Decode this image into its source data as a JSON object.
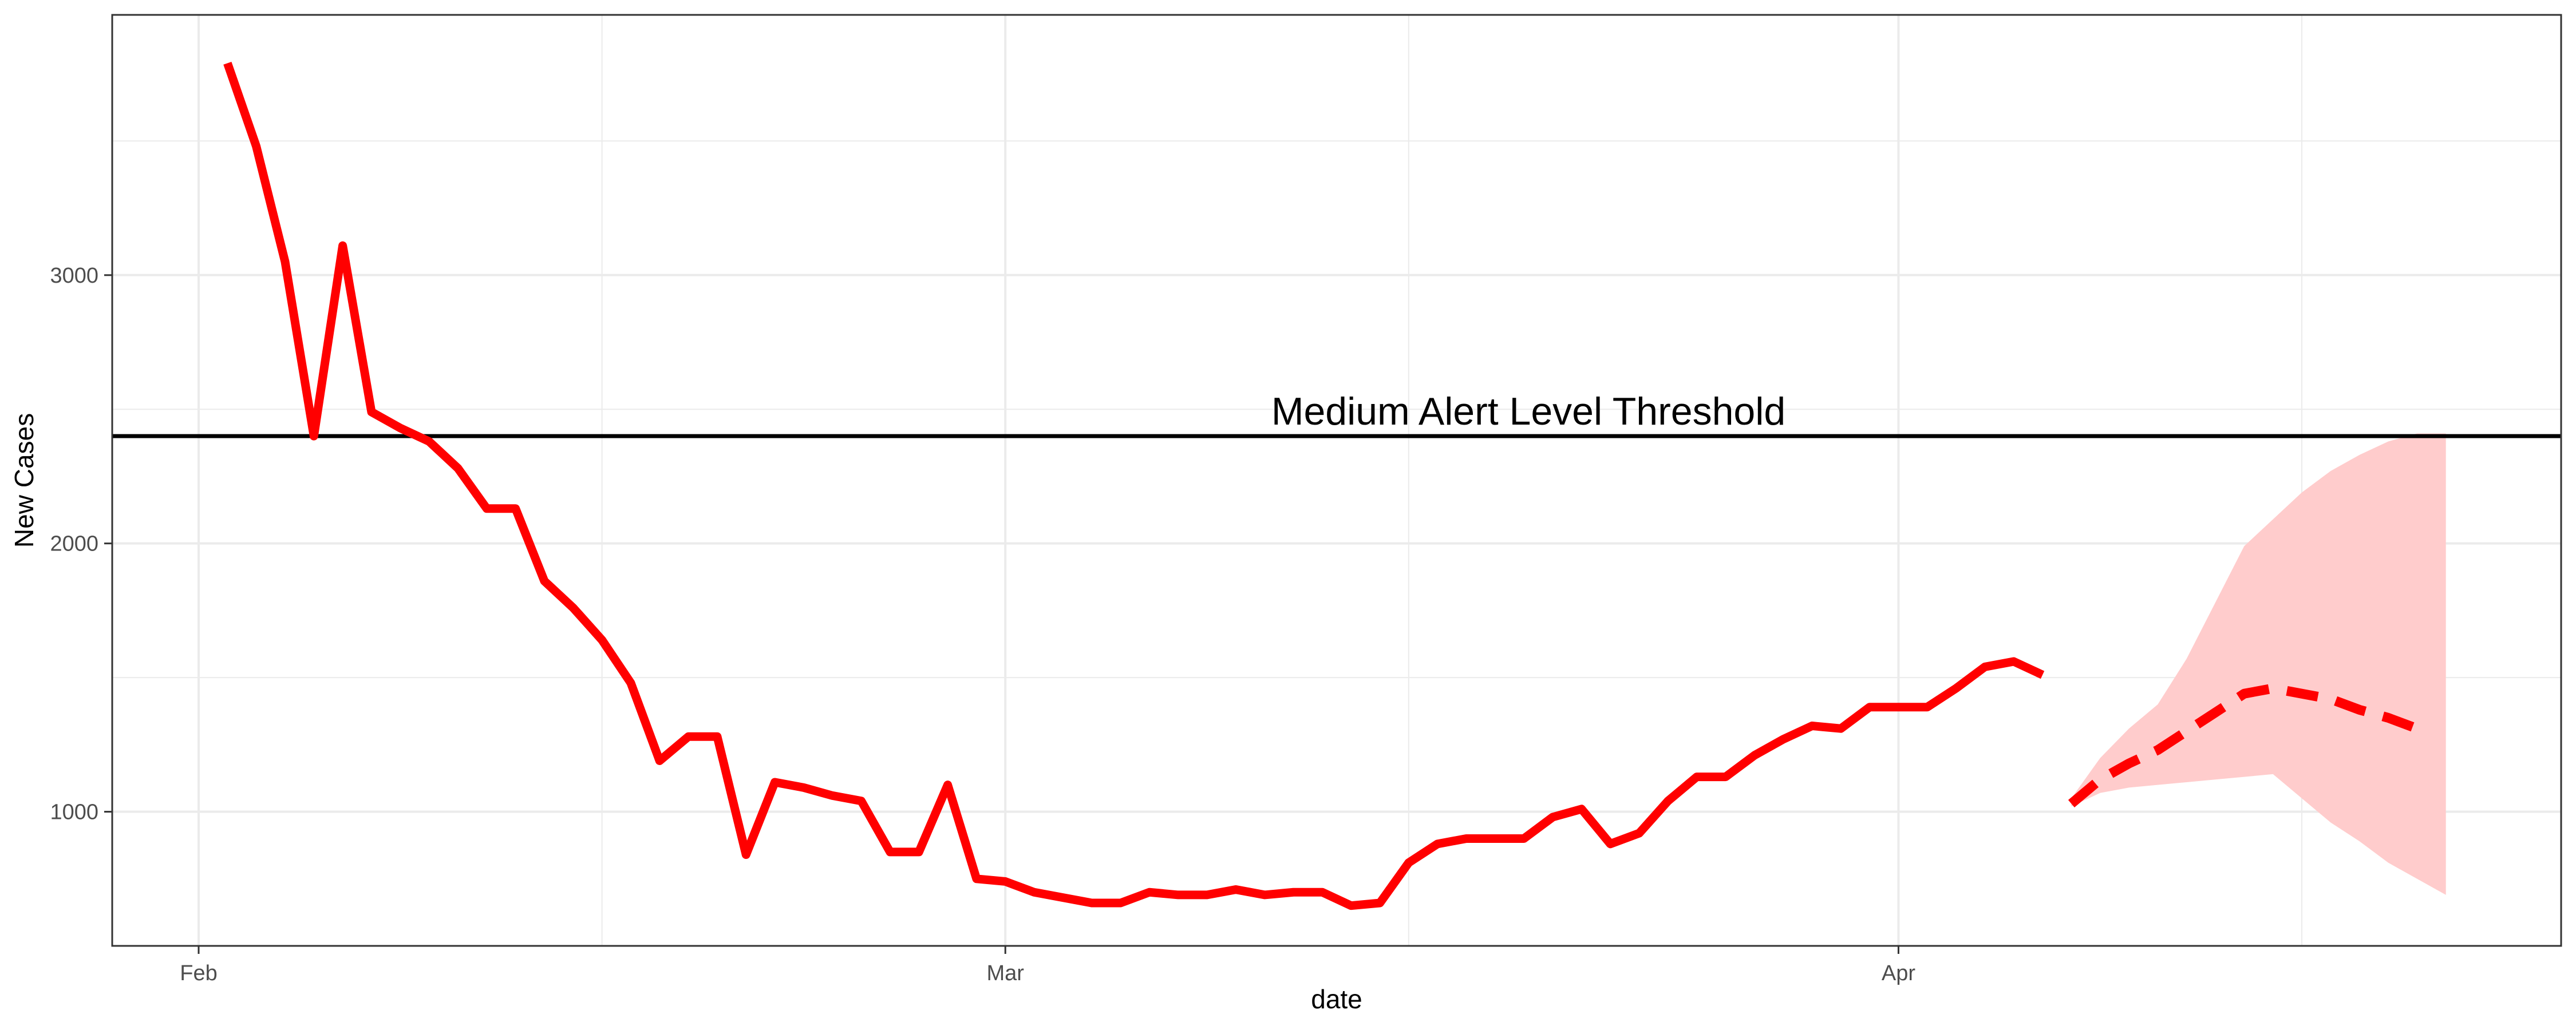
{
  "chart_data": {
    "type": "line",
    "xlabel": "date",
    "ylabel": "New Cases",
    "xlim": [
      "2021-01-29",
      "2021-04-24"
    ],
    "ylim": [
      500,
      3970
    ],
    "x_ticks": [
      {
        "date": "2021-02-01",
        "label": "Feb"
      },
      {
        "date": "2021-03-01",
        "label": "Mar"
      },
      {
        "date": "2021-04-01",
        "label": "Apr"
      }
    ],
    "x_minor_dates": [
      "2021-02-15",
      "2021-03-15",
      "2021-04-15"
    ],
    "y_ticks": [
      1000,
      2000,
      3000
    ],
    "y_minor": [
      1500,
      2500,
      3500
    ],
    "grid": true,
    "threshold": {
      "value": 2400,
      "label": "Medium Alert Level Threshold"
    },
    "colors": {
      "observed": "#ff0000",
      "forecast": "#ff0000",
      "band": "#ffcccc",
      "threshold": "#000000",
      "grid": "#ebebeb",
      "panel_border": "#333333"
    },
    "series": [
      {
        "style": "solid",
        "points": [
          [
            "2021-02-02",
            3790
          ],
          [
            "2021-02-03",
            3480
          ],
          [
            "2021-02-04",
            3050
          ],
          [
            "2021-02-05",
            2400
          ],
          [
            "2021-02-06",
            3110
          ],
          [
            "2021-02-07",
            2490
          ],
          [
            "2021-02-08",
            2430
          ],
          [
            "2021-02-09",
            2380
          ],
          [
            "2021-02-10",
            2280
          ],
          [
            "2021-02-11",
            2130
          ],
          [
            "2021-02-12",
            2130
          ],
          [
            "2021-02-13",
            1860
          ],
          [
            "2021-02-14",
            1760
          ],
          [
            "2021-02-15",
            1640
          ],
          [
            "2021-02-16",
            1480
          ],
          [
            "2021-02-17",
            1190
          ],
          [
            "2021-02-18",
            1280
          ],
          [
            "2021-02-19",
            1280
          ],
          [
            "2021-02-20",
            840
          ],
          [
            "2021-02-21",
            1110
          ],
          [
            "2021-02-22",
            1090
          ],
          [
            "2021-02-23",
            1060
          ],
          [
            "2021-02-24",
            1040
          ],
          [
            "2021-02-25",
            850
          ],
          [
            "2021-02-26",
            850
          ],
          [
            "2021-02-27",
            1100
          ],
          [
            "2021-02-28",
            750
          ],
          [
            "2021-03-01",
            740
          ],
          [
            "2021-03-02",
            700
          ],
          [
            "2021-03-03",
            680
          ],
          [
            "2021-03-04",
            660
          ],
          [
            "2021-03-05",
            660
          ],
          [
            "2021-03-06",
            700
          ],
          [
            "2021-03-07",
            690
          ],
          [
            "2021-03-08",
            690
          ],
          [
            "2021-03-09",
            710
          ],
          [
            "2021-03-10",
            690
          ],
          [
            "2021-03-11",
            700
          ],
          [
            "2021-03-12",
            700
          ],
          [
            "2021-03-13",
            650
          ],
          [
            "2021-03-14",
            660
          ],
          [
            "2021-03-15",
            810
          ],
          [
            "2021-03-16",
            880
          ],
          [
            "2021-03-17",
            900
          ],
          [
            "2021-03-18",
            900
          ],
          [
            "2021-03-19",
            900
          ],
          [
            "2021-03-20",
            980
          ],
          [
            "2021-03-21",
            1010
          ],
          [
            "2021-03-22",
            880
          ],
          [
            "2021-03-23",
            920
          ],
          [
            "2021-03-24",
            1040
          ],
          [
            "2021-03-25",
            1130
          ],
          [
            "2021-03-26",
            1130
          ],
          [
            "2021-03-27",
            1210
          ],
          [
            "2021-03-28",
            1270
          ],
          [
            "2021-03-29",
            1320
          ],
          [
            "2021-03-30",
            1310
          ],
          [
            "2021-03-31",
            1390
          ],
          [
            "2021-04-01",
            1390
          ],
          [
            "2021-04-02",
            1390
          ],
          [
            "2021-04-03",
            1460
          ],
          [
            "2021-04-04",
            1540
          ],
          [
            "2021-04-05",
            1560
          ],
          [
            "2021-04-06",
            1510
          ]
        ]
      },
      {
        "style": "dashed",
        "points": [
          [
            "2021-04-07",
            1030
          ],
          [
            "2021-04-08",
            1120
          ],
          [
            "2021-04-09",
            1180
          ],
          [
            "2021-04-10",
            1230
          ],
          [
            "2021-04-11",
            1300
          ],
          [
            "2021-04-12",
            1370
          ],
          [
            "2021-04-13",
            1440
          ],
          [
            "2021-04-14",
            1460
          ],
          [
            "2021-04-15",
            1440
          ],
          [
            "2021-04-16",
            1420
          ],
          [
            "2021-04-17",
            1380
          ],
          [
            "2021-04-18",
            1350
          ],
          [
            "2021-04-19",
            1310
          ]
        ]
      }
    ],
    "band": {
      "dates": [
        "2021-04-07",
        "2021-04-08",
        "2021-04-09",
        "2021-04-10",
        "2021-04-11",
        "2021-04-12",
        "2021-04-13",
        "2021-04-14",
        "2021-04-15",
        "2021-04-16",
        "2021-04-17",
        "2021-04-18",
        "2021-04-19",
        "2021-04-20"
      ],
      "lower": [
        1020,
        1070,
        1090,
        1100,
        1110,
        1120,
        1130,
        1140,
        1050,
        960,
        890,
        810,
        750,
        690
      ],
      "upper": [
        1050,
        1200,
        1310,
        1400,
        1570,
        1780,
        1990,
        2090,
        2190,
        2270,
        2330,
        2380,
        2410,
        2410
      ]
    }
  }
}
